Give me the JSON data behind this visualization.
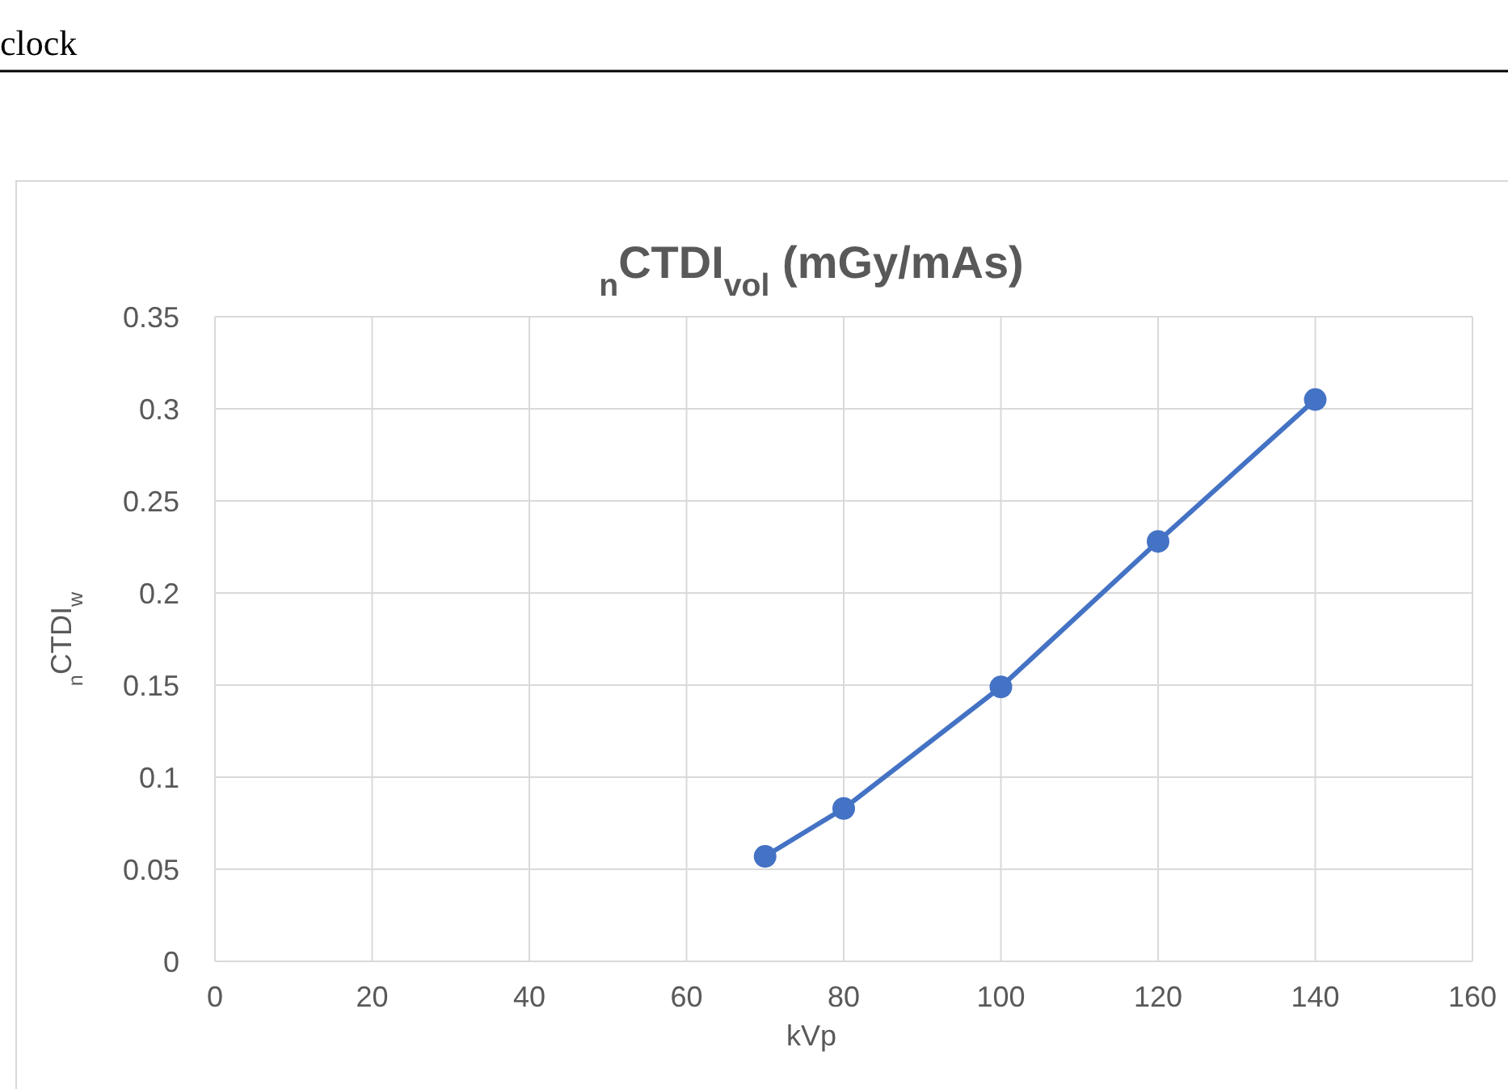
{
  "chart_data": {
    "type": "line",
    "title": "$_{n}$CTDI$_{vol}$ (mGy/mAs)",
    "xlabel": "kVp",
    "ylabel": "$_{n}$CTDI$_{w}$",
    "annotations": [
      "clock"
    ],
    "x": [
      70,
      80,
      100,
      120,
      140
    ],
    "series": [
      {
        "color": "#4472c4",
        "values": [
          0.057,
          0.083,
          0.149,
          0.228,
          0.305
        ]
      }
    ],
    "xlim": [
      0,
      160
    ],
    "xticks": [
      0,
      20,
      40,
      60,
      80,
      100,
      120,
      140,
      160
    ],
    "ylim": [
      0,
      0.35
    ],
    "yticks": [
      0,
      0.05,
      0.1,
      0.15,
      0.2,
      0.25,
      0.3,
      0.35
    ],
    "grid": true,
    "marker": "circle",
    "line_style": "solid"
  }
}
